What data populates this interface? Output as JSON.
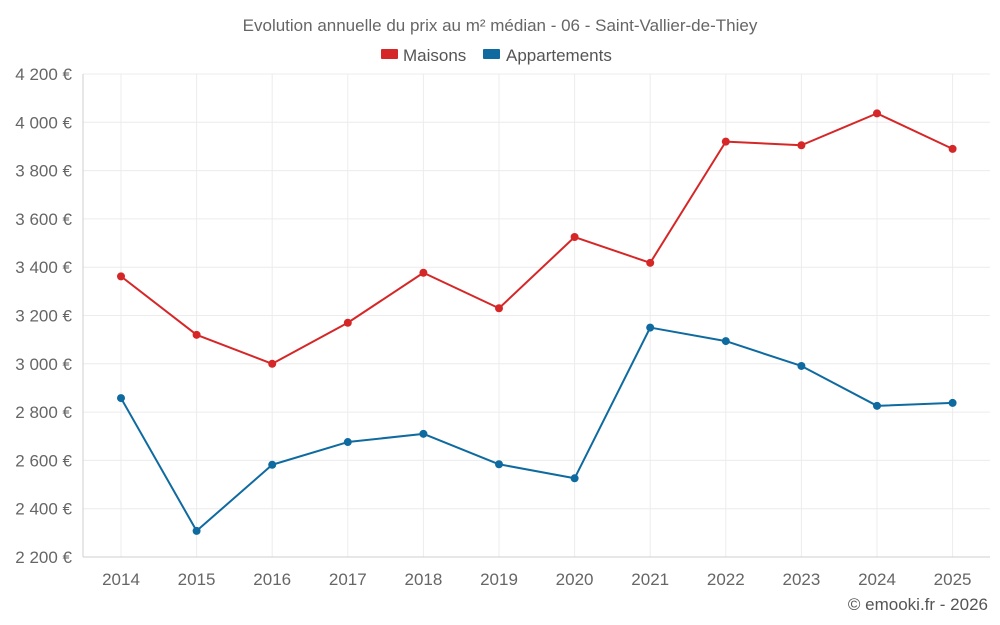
{
  "chart_data": {
    "type": "line",
    "title": "Evolution annuelle du prix au m² médian - 06 - Saint-Vallier-de-Thiey",
    "categories": [
      "2014",
      "2015",
      "2016",
      "2017",
      "2018",
      "2019",
      "2020",
      "2021",
      "2022",
      "2023",
      "2024",
      "2025"
    ],
    "series": [
      {
        "name": "Maisons",
        "color": "#d62728",
        "values": [
          3362,
          3120,
          3000,
          3170,
          3377,
          3230,
          3525,
          3418,
          3920,
          3905,
          4037,
          3890
        ]
      },
      {
        "name": "Appartements",
        "color": "#0f6aa0",
        "values": [
          2858,
          2308,
          2582,
          2676,
          2710,
          2584,
          2526,
          3150,
          3094,
          2991,
          2826,
          2838
        ]
      }
    ],
    "ylim": [
      2200,
      4200
    ],
    "yticks": [
      2200,
      2400,
      2600,
      2800,
      3000,
      3200,
      3400,
      3600,
      3800,
      4000,
      4200
    ],
    "ytick_labels": [
      "2 200 €",
      "2 400 €",
      "2 600 €",
      "2 800 €",
      "3 000 €",
      "3 200 €",
      "3 400 €",
      "3 600 €",
      "3 800 €",
      "4 000 €",
      "4 200 €"
    ],
    "xlabel": "",
    "ylabel": "",
    "legend_position": "top-center",
    "grid": true
  },
  "credit": "© emooki.fr - 2026"
}
